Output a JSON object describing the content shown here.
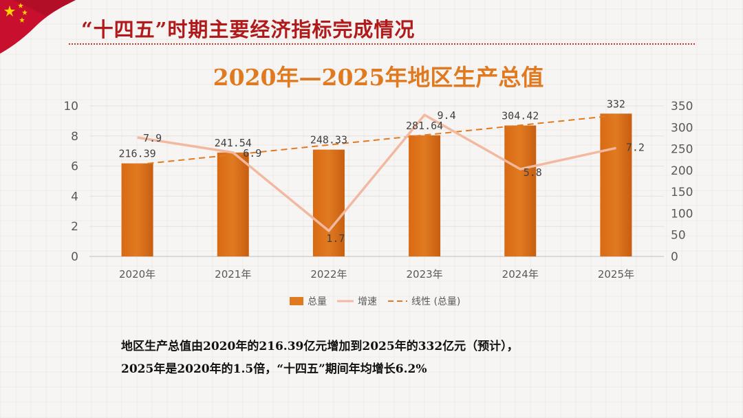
{
  "slide": {
    "title": "“十四五”时期主要经济指标完成情况"
  },
  "summary": {
    "line1": "地区生产总值由2020年的216.39亿元增加到2025年的332亿元（预计），",
    "line2": "2025年是2020年的1.5倍，“十四五”期间年均增长6.2%"
  },
  "colors": {
    "bar": "#e07a21",
    "line": "#f2b9a0",
    "trend": "#e07a21",
    "title_red": "#b11a1a"
  },
  "chart_data": {
    "type": "bar",
    "title": "2020年—2025年地区生产总值",
    "categories": [
      "2020年",
      "2021年",
      "2022年",
      "2023年",
      "2024年",
      "2025年"
    ],
    "series": [
      {
        "name": "总量",
        "type": "bar",
        "axis": "right",
        "values": [
          216.39,
          241.54,
          248.33,
          281.64,
          304.42,
          332
        ],
        "labels": [
          "216.39",
          "241.54",
          "248.33",
          "281.64",
          "304.42",
          "332"
        ]
      },
      {
        "name": "增速",
        "type": "line",
        "axis": "left",
        "values": [
          7.9,
          6.9,
          1.7,
          9.4,
          5.8,
          7.2
        ],
        "labels": [
          "7.9",
          "6.9",
          "1.7",
          "9.4",
          "5.8",
          "7.2"
        ]
      },
      {
        "name": "线性 (总量)",
        "type": "trendline",
        "axis": "right",
        "of": "总量"
      }
    ],
    "y_left": {
      "min": 0,
      "max": 10,
      "ticks": [
        "0",
        "2",
        "4",
        "6",
        "8",
        "10"
      ]
    },
    "y_right": {
      "min": 0,
      "max": 350,
      "ticks": [
        "0",
        "50",
        "100",
        "150",
        "200",
        "250",
        "300",
        "350"
      ]
    },
    "grid": true,
    "legend_position": "bottom"
  }
}
